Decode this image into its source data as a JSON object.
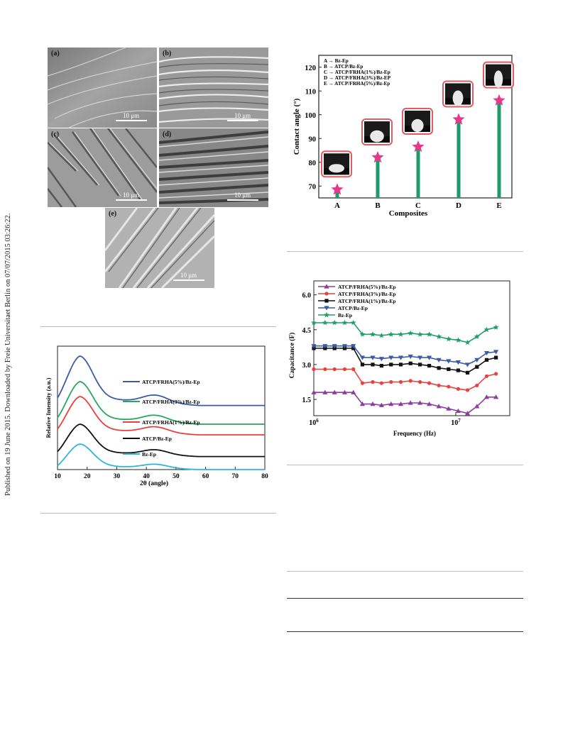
{
  "sidebar": {
    "text": "Published on 19 June 2015. Downloaded by Freie Universitaet Berlin on 07/07/2015 03:26:22."
  },
  "sem": {
    "panels": [
      {
        "label": "(a)",
        "scale": "10 μm"
      },
      {
        "label": "(b)",
        "scale": "10 μm"
      },
      {
        "label": "(c)",
        "scale": "10 μm"
      },
      {
        "label": "(d)",
        "scale": "10 μm"
      },
      {
        "label": "(e)",
        "scale": "10 μm"
      }
    ]
  },
  "chart_data": [
    {
      "id": "contact-angle",
      "type": "scatter",
      "ylabel": "Contact angle (°)",
      "xlabel": "Composites",
      "categories": [
        "A",
        "B",
        "C",
        "D",
        "E"
      ],
      "values": [
        68.5,
        82,
        86.5,
        98,
        106
      ],
      "ylim": [
        65,
        125
      ],
      "yticks": [
        "70",
        "80",
        "90",
        "100",
        "110",
        "120"
      ],
      "legend": [
        {
          "key": "A",
          "text": "Bz-Ep"
        },
        {
          "key": "B",
          "text": "ATCP/Bz-Ep"
        },
        {
          "key": "C",
          "text": "ATCP/FRHA(1%)/Bz-Ep"
        },
        {
          "key": "D",
          "text": "ATCP/FRHA(3%)/Bz-EP"
        },
        {
          "key": "E",
          "text": "ATCP/FRHA(5%)/Bz-Ep"
        }
      ],
      "arrow": "→",
      "colors": {
        "stem": "#1e9a6c",
        "star": "#e8388a",
        "frame": "#e25a62"
      }
    },
    {
      "id": "xrd",
      "type": "line",
      "xlabel": "2θ (angle)",
      "ylabel": "Relative Intensity (a.u.)",
      "xlim": [
        10,
        80
      ],
      "xticks": [
        "10",
        "20",
        "30",
        "40",
        "50",
        "60",
        "70",
        "80"
      ],
      "series": [
        {
          "name": "ATCP/FRHA(5%)/Bz-Ep",
          "color": "#3b5ba8"
        },
        {
          "name": "ATCP/FRHA(3%)/Bz-Ep",
          "color": "#26a85c"
        },
        {
          "name": "ATCP/FRHA(1%)/Bz-Ep",
          "color": "#e8403e"
        },
        {
          "name": "ATCP/Bz-Ep",
          "color": "#111111"
        },
        {
          "name": "Bz-Ep",
          "color": "#2ab7dc"
        }
      ]
    },
    {
      "id": "capacitance",
      "type": "line",
      "xlabel": "Frequency (Hz)",
      "ylabel": "Capacitance (F)",
      "xscale": "log",
      "xticks": [
        {
          "base": "10",
          "exp": "6"
        },
        {
          "base": "10",
          "exp": "7"
        }
      ],
      "ylim": [
        0.8,
        6.6
      ],
      "yticks": [
        "1.5",
        "3.0",
        "4.5",
        "6.0"
      ],
      "x": [
        1000000,
        1200000,
        1400000,
        1650000,
        1900000,
        2200000,
        2600000,
        3000000,
        3500000,
        4100000,
        4800000,
        5600000,
        6500000,
        7600000,
        8900000,
        10400000,
        12100000,
        14100000,
        16500000,
        19200000
      ],
      "series": [
        {
          "name": "ATCP/FRHA(5%)/Bz-Ep",
          "color": "#8e3c9e",
          "marker": "triangle-up",
          "values": [
            1.8,
            1.8,
            1.8,
            1.8,
            1.8,
            1.3,
            1.3,
            1.25,
            1.3,
            1.3,
            1.35,
            1.35,
            1.3,
            1.2,
            1.1,
            1.0,
            0.9,
            1.2,
            1.6,
            1.6
          ]
        },
        {
          "name": "ATCP/FRHA(3%)/Bz-Ep",
          "color": "#e8403e",
          "marker": "circle",
          "values": [
            2.8,
            2.8,
            2.8,
            2.8,
            2.8,
            2.2,
            2.25,
            2.2,
            2.25,
            2.25,
            2.3,
            2.25,
            2.2,
            2.1,
            2.05,
            1.95,
            1.9,
            2.1,
            2.5,
            2.6
          ]
        },
        {
          "name": "ATCP/FRHA(1%)/Bz-Ep",
          "color": "#111111",
          "marker": "square",
          "values": [
            3.7,
            3.7,
            3.7,
            3.7,
            3.7,
            3.0,
            3.0,
            2.95,
            3.0,
            3.0,
            3.05,
            3.0,
            2.95,
            2.85,
            2.8,
            2.75,
            2.65,
            2.9,
            3.2,
            3.3
          ]
        },
        {
          "name": "ATCP/Bz-Ep",
          "color": "#3b5ba8",
          "marker": "triangle-down",
          "values": [
            3.8,
            3.8,
            3.8,
            3.8,
            3.8,
            3.3,
            3.3,
            3.25,
            3.3,
            3.3,
            3.35,
            3.3,
            3.3,
            3.2,
            3.15,
            3.1,
            3.0,
            3.2,
            3.5,
            3.55
          ]
        },
        {
          "name": "Bz-Ep",
          "color": "#1f9e68",
          "marker": "star",
          "values": [
            4.8,
            4.8,
            4.8,
            4.8,
            4.8,
            4.3,
            4.3,
            4.25,
            4.3,
            4.3,
            4.35,
            4.3,
            4.3,
            4.2,
            4.1,
            4.05,
            3.95,
            4.2,
            4.5,
            4.6
          ]
        }
      ]
    }
  ]
}
